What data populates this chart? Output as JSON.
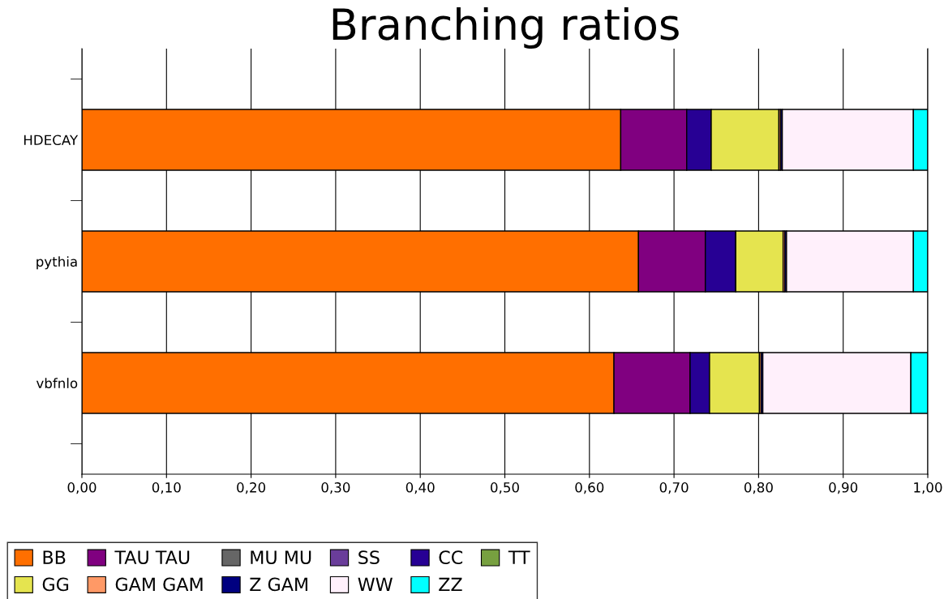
{
  "chart_data": {
    "type": "bar",
    "title": "Branching ratios",
    "orientation": "horizontal",
    "stacked": true,
    "categories": [
      "HDECAY",
      "pythia",
      "vbfnlo"
    ],
    "series": [
      {
        "name": "BB",
        "color": "#ff6f00",
        "values": [
          0.637,
          0.658,
          0.629
        ]
      },
      {
        "name": "TAU TAU",
        "color": "#800080",
        "values": [
          0.078,
          0.079,
          0.09
        ]
      },
      {
        "name": "MU MU",
        "color": "#666666",
        "values": [
          null,
          null,
          null
        ]
      },
      {
        "name": "SS",
        "color": "#6a3d9a",
        "values": [
          null,
          null,
          null
        ]
      },
      {
        "name": "CC",
        "color": "#270094",
        "values": [
          0.029,
          0.036,
          0.023
        ]
      },
      {
        "name": "TT",
        "color": "#77a040",
        "values": [
          0,
          0,
          0
        ]
      },
      {
        "name": "GG",
        "color": "#e5e44f",
        "values": [
          0.08,
          0.056,
          0.059
        ]
      },
      {
        "name": "GAM GAM",
        "color": "#ff9966",
        "values": [
          0.002,
          0.002,
          0.002
        ]
      },
      {
        "name": "Z GAM",
        "color": "#000080",
        "values": [
          0.002,
          0.002,
          0.002
        ]
      },
      {
        "name": "WW",
        "color": "#fff0fb",
        "values": [
          0.155,
          0.15,
          0.175
        ]
      },
      {
        "name": "ZZ",
        "color": "#00ffff",
        "values": [
          0.017,
          0.017,
          0.02
        ]
      }
    ],
    "xlim": [
      0,
      1
    ],
    "xticks": [
      {
        "value": 0,
        "label": "0,00"
      },
      {
        "value": 0.1,
        "label": "0,10"
      },
      {
        "value": 0.2,
        "label": "0,20"
      },
      {
        "value": 0.3,
        "label": "0,30"
      },
      {
        "value": 0.4,
        "label": "0,40"
      },
      {
        "value": 0.5,
        "label": "0,50"
      },
      {
        "value": 0.6,
        "label": "0,60"
      },
      {
        "value": 0.7,
        "label": "0,70"
      },
      {
        "value": 0.8,
        "label": "0,80"
      },
      {
        "value": 0.9,
        "label": "0,90"
      },
      {
        "value": 1,
        "label": "1,00"
      }
    ],
    "grid": "x",
    "legend": "bottom left"
  }
}
